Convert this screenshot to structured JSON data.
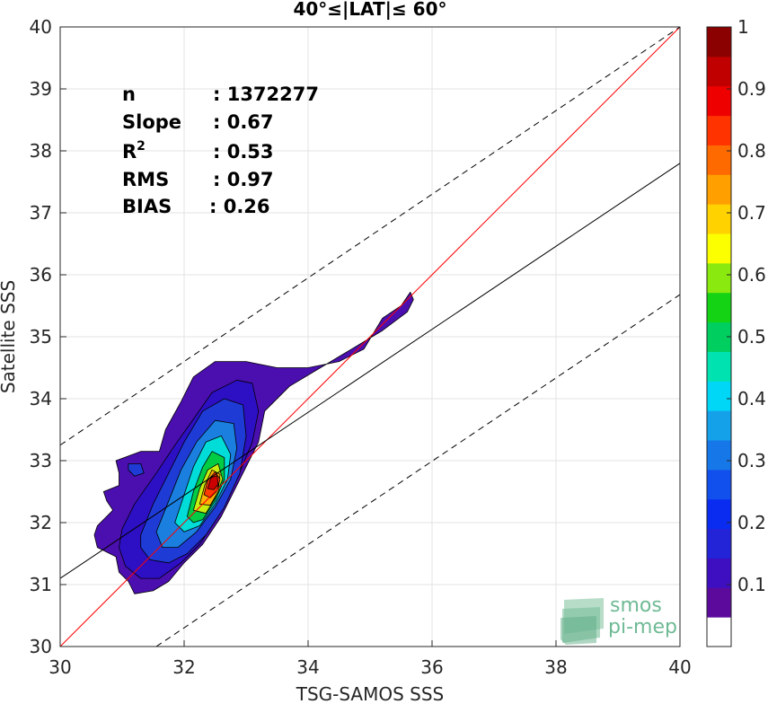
{
  "chart_data": {
    "type": "contour",
    "title": "40°≤|LAT|≤ 60°",
    "xlabel": "TSG-SAMOS SSS",
    "ylabel": "Satellite SSS",
    "xlim": [
      30,
      40
    ],
    "ylim": [
      30,
      40
    ],
    "x_ticks": [
      "30",
      "32",
      "34",
      "36",
      "38",
      "40"
    ],
    "y_ticks": [
      "30",
      "31",
      "32",
      "33",
      "34",
      "35",
      "36",
      "37",
      "38",
      "39",
      "40"
    ],
    "grid": true,
    "stats": [
      {
        "label": "n",
        "value": ": 1372277"
      },
      {
        "label": "Slope",
        "value": ": 0.67"
      },
      {
        "label": "R",
        "sup": "2",
        "value": ": 0.53"
      },
      {
        "label": "RMS",
        "value": ": 0.97"
      },
      {
        "label": "BIAS",
        "value": ": 0.26"
      }
    ],
    "lines": [
      {
        "role": "identity",
        "color": "#ff0000",
        "style": "solid",
        "points": [
          [
            30,
            30
          ],
          [
            40,
            40
          ]
        ]
      },
      {
        "role": "regression",
        "color": "#000000",
        "style": "solid",
        "points": [
          [
            30,
            31.1
          ],
          [
            40,
            37.8
          ]
        ]
      },
      {
        "role": "upper-bound",
        "color": "#000000",
        "style": "dashed",
        "points": [
          [
            30,
            33.25
          ],
          [
            40,
            40.0
          ]
        ]
      },
      {
        "role": "lower-bound",
        "color": "#000000",
        "style": "dashed",
        "points": [
          [
            31.55,
            30.0
          ],
          [
            40,
            35.68
          ]
        ]
      }
    ],
    "contour_levels": [
      {
        "level": 0.05,
        "color": "#4b0fb0",
        "points": [
          [
            30.55,
            31.8
          ],
          [
            30.6,
            31.95
          ],
          [
            30.85,
            32.2
          ],
          [
            30.75,
            32.35
          ],
          [
            30.7,
            32.5
          ],
          [
            30.95,
            32.6
          ],
          [
            30.95,
            32.8
          ],
          [
            30.9,
            33.0
          ],
          [
            31.3,
            33.15
          ],
          [
            31.6,
            33.15
          ],
          [
            31.7,
            33.5
          ],
          [
            31.95,
            33.95
          ],
          [
            32.15,
            34.35
          ],
          [
            32.5,
            34.6
          ],
          [
            33.0,
            34.6
          ],
          [
            33.5,
            34.5
          ],
          [
            34.0,
            34.5
          ],
          [
            34.5,
            34.6
          ],
          [
            34.9,
            34.8
          ],
          [
            35.05,
            35.05
          ],
          [
            35.2,
            35.3
          ],
          [
            35.5,
            35.5
          ],
          [
            35.65,
            35.72
          ],
          [
            35.7,
            35.6
          ],
          [
            35.6,
            35.4
          ],
          [
            35.2,
            35.1
          ],
          [
            34.7,
            34.8
          ],
          [
            34.2,
            34.5
          ],
          [
            33.7,
            34.2
          ],
          [
            33.3,
            33.8
          ],
          [
            33.2,
            33.3
          ],
          [
            32.9,
            32.7
          ],
          [
            32.6,
            32.1
          ],
          [
            32.3,
            31.65
          ],
          [
            32.0,
            31.35
          ],
          [
            31.75,
            31.05
          ],
          [
            31.5,
            30.9
          ],
          [
            31.2,
            30.85
          ],
          [
            31.1,
            31.05
          ],
          [
            30.95,
            31.2
          ],
          [
            30.9,
            31.45
          ],
          [
            30.6,
            31.6
          ]
        ]
      },
      {
        "level": 0.1,
        "color": "#2d0fc4",
        "points": [
          [
            31.0,
            31.9
          ],
          [
            31.2,
            32.3
          ],
          [
            31.55,
            32.8
          ],
          [
            31.85,
            33.25
          ],
          [
            32.1,
            33.6
          ],
          [
            32.45,
            34.1
          ],
          [
            32.85,
            34.3
          ],
          [
            33.1,
            34.25
          ],
          [
            33.2,
            33.8
          ],
          [
            33.1,
            33.3
          ],
          [
            32.85,
            32.7
          ],
          [
            32.55,
            32.1
          ],
          [
            32.25,
            31.65
          ],
          [
            31.95,
            31.35
          ],
          [
            31.6,
            31.1
          ],
          [
            31.3,
            31.1
          ],
          [
            31.05,
            31.3
          ],
          [
            30.95,
            31.6
          ]
        ]
      },
      {
        "level": 0.2,
        "color": "#1f3bd6",
        "points": [
          [
            31.3,
            31.8
          ],
          [
            31.5,
            32.3
          ],
          [
            31.75,
            32.8
          ],
          [
            32.0,
            33.3
          ],
          [
            32.3,
            33.8
          ],
          [
            32.65,
            34.0
          ],
          [
            32.95,
            33.9
          ],
          [
            33.0,
            33.4
          ],
          [
            32.9,
            32.8
          ],
          [
            32.65,
            32.25
          ],
          [
            32.35,
            31.8
          ],
          [
            32.05,
            31.5
          ],
          [
            31.75,
            31.35
          ],
          [
            31.45,
            31.4
          ],
          [
            31.3,
            31.6
          ]
        ]
      },
      {
        "level": 0.3,
        "color": "#1a7fdf",
        "points": [
          [
            31.55,
            31.85
          ],
          [
            31.75,
            32.35
          ],
          [
            31.95,
            32.85
          ],
          [
            32.2,
            33.3
          ],
          [
            32.5,
            33.65
          ],
          [
            32.8,
            33.6
          ],
          [
            32.85,
            33.2
          ],
          [
            32.75,
            32.7
          ],
          [
            32.5,
            32.25
          ],
          [
            32.2,
            31.85
          ],
          [
            31.9,
            31.6
          ],
          [
            31.65,
            31.6
          ]
        ]
      },
      {
        "level": 0.4,
        "color": "#00dcd8",
        "points": [
          [
            31.85,
            32.0
          ],
          [
            32.0,
            32.45
          ],
          [
            32.15,
            32.9
          ],
          [
            32.35,
            33.3
          ],
          [
            32.6,
            33.4
          ],
          [
            32.75,
            33.1
          ],
          [
            32.7,
            32.7
          ],
          [
            32.5,
            32.3
          ],
          [
            32.25,
            31.95
          ],
          [
            32.0,
            31.85
          ]
        ]
      },
      {
        "level": 0.5,
        "color": "#00cc44",
        "points": [
          [
            32.05,
            32.1
          ],
          [
            32.15,
            32.5
          ],
          [
            32.3,
            32.9
          ],
          [
            32.45,
            33.15
          ],
          [
            32.65,
            33.05
          ],
          [
            32.65,
            32.7
          ],
          [
            32.5,
            32.35
          ],
          [
            32.3,
            32.05
          ],
          [
            32.15,
            32.0
          ]
        ]
      },
      {
        "level": 0.6,
        "color": "#c8ee10",
        "points": [
          [
            32.15,
            32.2
          ],
          [
            32.25,
            32.55
          ],
          [
            32.38,
            32.85
          ],
          [
            32.55,
            32.95
          ],
          [
            32.62,
            32.7
          ],
          [
            32.5,
            32.4
          ],
          [
            32.35,
            32.15
          ]
        ]
      },
      {
        "level": 0.7,
        "color": "#ffb000",
        "points": [
          [
            32.25,
            32.3
          ],
          [
            32.33,
            32.6
          ],
          [
            32.45,
            32.85
          ],
          [
            32.58,
            32.78
          ],
          [
            32.55,
            32.5
          ],
          [
            32.42,
            32.28
          ]
        ]
      },
      {
        "level": 0.85,
        "color": "#ff3a00",
        "points": [
          [
            32.32,
            32.45
          ],
          [
            32.38,
            32.68
          ],
          [
            32.5,
            32.82
          ],
          [
            32.58,
            32.7
          ],
          [
            32.52,
            32.5
          ],
          [
            32.42,
            32.4
          ]
        ]
      },
      {
        "level": 0.95,
        "color": "#cc0000",
        "points": [
          [
            32.38,
            32.55
          ],
          [
            32.43,
            32.72
          ],
          [
            32.53,
            32.76
          ],
          [
            32.55,
            32.62
          ],
          [
            32.48,
            32.53
          ]
        ]
      }
    ],
    "secondary_blob": {
      "color": "#1f3bd6",
      "points": [
        [
          31.1,
          32.95
        ],
        [
          31.3,
          32.95
        ],
        [
          31.35,
          32.8
        ],
        [
          31.2,
          32.75
        ],
        [
          31.1,
          32.85
        ]
      ]
    },
    "colorbar": {
      "range": [
        0,
        1
      ],
      "ticks": [
        "0.1",
        "0.2",
        "0.3",
        "0.4",
        "0.5",
        "0.6",
        "0.7",
        "0.8",
        "0.9",
        "1"
      ],
      "colors": [
        "#ffffff",
        "#5b0a9c",
        "#3d0fc0",
        "#2323d8",
        "#0a2cf0",
        "#1250ee",
        "#1677e8",
        "#15a0ea",
        "#00d6f5",
        "#00e3b0",
        "#00cf60",
        "#14d314",
        "#8ae90f",
        "#fbff00",
        "#ffd200",
        "#ff9f00",
        "#ff6a00",
        "#ff3300",
        "#ee0000",
        "#c00000",
        "#8b0000"
      ]
    },
    "watermark": {
      "line1": "smos",
      "line2": "pi-mep",
      "color": "#6fba95"
    }
  }
}
